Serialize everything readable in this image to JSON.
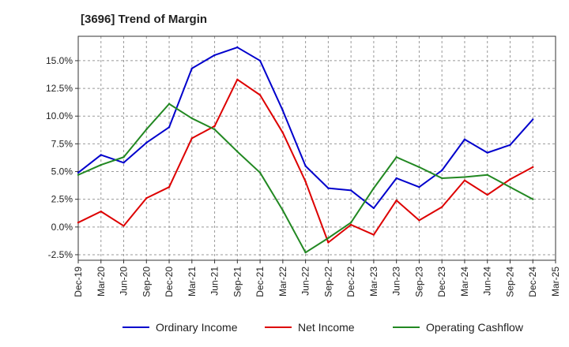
{
  "chart_data": {
    "type": "line",
    "title": "[3696]  Trend of Margin",
    "xlabel": "",
    "ylabel": "",
    "categories": [
      "Dec-19",
      "Mar-20",
      "Jun-20",
      "Sep-20",
      "Dec-20",
      "Mar-21",
      "Jun-21",
      "Sep-21",
      "Dec-21",
      "Mar-22",
      "Jun-22",
      "Sep-22",
      "Dec-22",
      "Mar-23",
      "Jun-23",
      "Sep-23",
      "Dec-23",
      "Mar-24",
      "Jun-24",
      "Sep-24",
      "Dec-24",
      "Mar-25"
    ],
    "ylim": [
      -3.0,
      17.2
    ],
    "yticks": [
      -2.5,
      0.0,
      2.5,
      5.0,
      7.5,
      10.0,
      12.5,
      15.0
    ],
    "ytick_labels": [
      "-2.5%",
      "0.0%",
      "2.5%",
      "5.0%",
      "7.5%",
      "10.0%",
      "12.5%",
      "15.0%"
    ],
    "grid": true,
    "legend_position": "bottom",
    "series": [
      {
        "name": "Ordinary Income",
        "color": "#0000cc",
        "values": [
          4.9,
          6.5,
          5.8,
          7.6,
          9.0,
          14.3,
          15.5,
          16.2,
          15.0,
          10.5,
          5.5,
          3.5,
          3.3,
          1.7,
          4.4,
          3.6,
          5.1,
          7.9,
          6.7,
          7.4,
          9.7,
          null
        ]
      },
      {
        "name": "Net Income",
        "color": "#dd0000",
        "values": [
          0.4,
          1.4,
          0.1,
          2.6,
          3.6,
          8.0,
          9.1,
          13.3,
          11.9,
          8.5,
          4.1,
          -1.4,
          0.2,
          -0.7,
          2.4,
          0.6,
          1.8,
          4.2,
          2.9,
          4.3,
          5.4,
          null
        ]
      },
      {
        "name": "Operating Cashflow",
        "color": "#228822",
        "values": [
          4.7,
          5.6,
          6.3,
          8.8,
          11.1,
          9.8,
          8.8,
          6.8,
          4.9,
          1.5,
          -2.3,
          -1.0,
          0.4,
          3.5,
          6.3,
          5.4,
          4.4,
          4.5,
          4.7,
          3.6,
          2.5,
          null
        ]
      }
    ]
  }
}
